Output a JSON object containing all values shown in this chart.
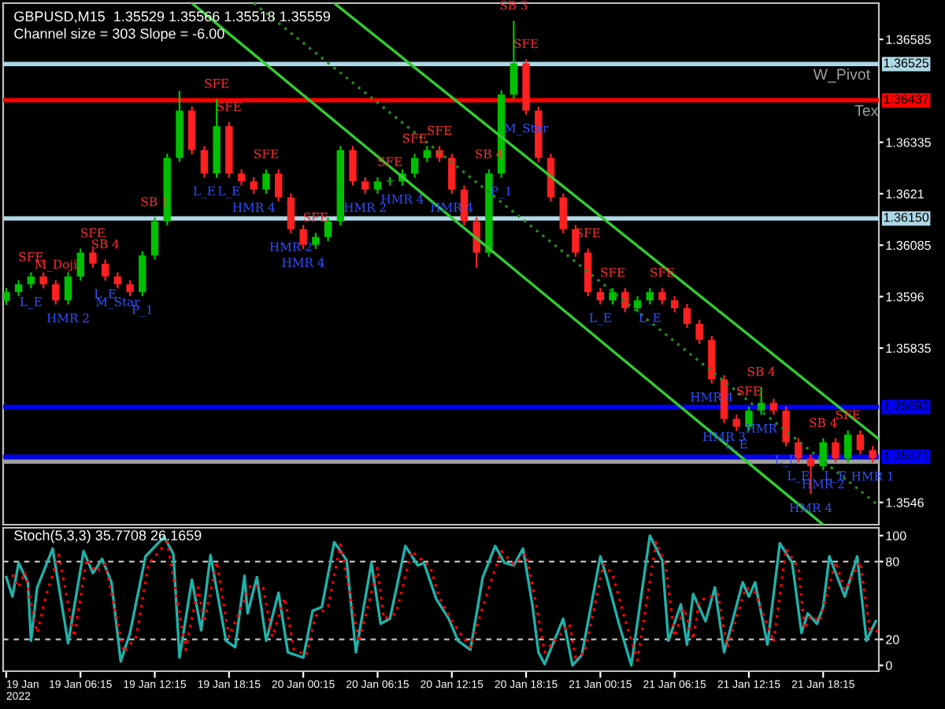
{
  "chart_data": [
    {
      "type": "candlestick",
      "title": "GBPUSD,M15  1.35529 1.35566 1.35518 1.35559",
      "subtitle": "Channel size = 303 Slope = -6.00",
      "tick_labels": "y",
      "x": [
        "2022-01-19T00:15",
        "2022-01-19T01:15",
        "2022-01-19T02:15",
        "2022-01-19T03:15",
        "2022-01-19T04:15",
        "2022-01-19T05:15",
        "2022-01-19T06:15",
        "2022-01-19T07:15",
        "2022-01-19T08:15",
        "2022-01-19T09:15",
        "2022-01-19T10:15",
        "2022-01-19T11:15",
        "2022-01-19T12:15",
        "2022-01-19T13:15",
        "2022-01-19T14:15",
        "2022-01-19T15:15",
        "2022-01-19T16:15",
        "2022-01-19T17:15",
        "2022-01-19T18:15",
        "2022-01-19T19:15",
        "2022-01-19T20:15",
        "2022-01-19T21:15",
        "2022-01-19T22:15",
        "2022-01-19T23:15",
        "2022-01-20T00:15",
        "2022-01-20T01:15",
        "2022-01-20T02:15",
        "2022-01-20T03:15",
        "2022-01-20T04:15",
        "2022-01-20T05:15",
        "2022-01-20T06:15",
        "2022-01-20T07:15",
        "2022-01-20T08:15",
        "2022-01-20T09:15",
        "2022-01-20T10:15",
        "2022-01-20T11:15",
        "2022-01-20T12:15",
        "2022-01-20T13:15",
        "2022-01-20T14:15",
        "2022-01-20T15:15",
        "2022-01-20T16:15",
        "2022-01-20T17:15",
        "2022-01-20T18:15",
        "2022-01-20T19:15",
        "2022-01-20T20:15",
        "2022-01-20T21:15",
        "2022-01-20T22:15",
        "2022-01-20T23:15",
        "2022-01-21T00:15",
        "2022-01-21T01:15",
        "2022-01-21T02:15",
        "2022-01-21T03:15",
        "2022-01-21T04:15",
        "2022-01-21T05:15",
        "2022-01-21T06:15",
        "2022-01-21T07:15",
        "2022-01-21T08:15",
        "2022-01-21T09:15",
        "2022-01-21T10:15",
        "2022-01-21T11:15",
        "2022-01-21T12:15",
        "2022-01-21T13:15",
        "2022-01-21T14:15",
        "2022-01-21T15:15",
        "2022-01-21T16:15",
        "2022-01-21T17:15",
        "2022-01-21T18:15",
        "2022-01-21T19:15",
        "2022-01-21T20:15",
        "2022-01-21T21:15",
        "2022-01-21T22:15"
      ],
      "ohlc": [
        [
          1.3595,
          1.35981,
          1.3594,
          1.35971
        ],
        [
          1.35971,
          1.36,
          1.35961,
          1.3599
        ],
        [
          1.3599,
          1.36019,
          1.3598,
          1.36009
        ],
        [
          1.36009,
          1.36019,
          1.3598,
          1.3599
        ],
        [
          1.3599,
          1.36,
          1.35941,
          1.35951
        ],
        [
          1.35951,
          1.36019,
          1.35941,
          1.36009
        ],
        [
          1.36009,
          1.36077,
          1.35999,
          1.36067
        ],
        [
          1.36067,
          1.36077,
          1.3603,
          1.3604
        ],
        [
          1.3604,
          1.3605,
          1.35999,
          1.36009
        ],
        [
          1.36009,
          1.36019,
          1.3598,
          1.3599
        ],
        [
          1.3599,
          1.36,
          1.35961,
          1.35971
        ],
        [
          1.35971,
          1.3607,
          1.35961,
          1.3606
        ],
        [
          1.3606,
          1.36153,
          1.3605,
          1.36143
        ],
        [
          1.36143,
          1.36307,
          1.36133,
          1.36297
        ],
        [
          1.36297,
          1.3646,
          1.36287,
          1.36412
        ],
        [
          1.36412,
          1.36422,
          1.36306,
          1.36316
        ],
        [
          1.36316,
          1.36326,
          1.36249,
          1.36259
        ],
        [
          1.36259,
          1.3644,
          1.36249,
          1.36374
        ],
        [
          1.36374,
          1.36384,
          1.36249,
          1.36259
        ],
        [
          1.36259,
          1.36269,
          1.3623,
          1.3624
        ],
        [
          1.3624,
          1.3625,
          1.3621,
          1.3622
        ],
        [
          1.3622,
          1.36269,
          1.3621,
          1.36259
        ],
        [
          1.36259,
          1.36269,
          1.36191,
          1.36201
        ],
        [
          1.36201,
          1.36211,
          1.36114,
          1.36124
        ],
        [
          1.36124,
          1.36134,
          1.36076,
          1.36086
        ],
        [
          1.36086,
          1.36115,
          1.36076,
          1.36105
        ],
        [
          1.36105,
          1.36153,
          1.36095,
          1.36143
        ],
        [
          1.36143,
          1.36326,
          1.36133,
          1.36316
        ],
        [
          1.36316,
          1.36326,
          1.3623,
          1.3624
        ],
        [
          1.3624,
          1.3625,
          1.3621,
          1.3622
        ],
        [
          1.3622,
          1.3625,
          1.3621,
          1.3624
        ],
        [
          1.3624,
          1.3625,
          1.3623,
          1.3624
        ],
        [
          1.3624,
          1.36269,
          1.3623,
          1.36259
        ],
        [
          1.36259,
          1.36307,
          1.36249,
          1.36297
        ],
        [
          1.36297,
          1.36326,
          1.36287,
          1.36316
        ],
        [
          1.36316,
          1.36326,
          1.36287,
          1.36297
        ],
        [
          1.36297,
          1.36307,
          1.3621,
          1.3622
        ],
        [
          1.3622,
          1.3623,
          1.36133,
          1.36143
        ],
        [
          1.36143,
          1.36153,
          1.3603,
          1.36067
        ],
        [
          1.36067,
          1.36269,
          1.36057,
          1.36259
        ],
        [
          1.36259,
          1.36461,
          1.36249,
          1.36451
        ],
        [
          1.36451,
          1.3663,
          1.36441,
          1.36527
        ],
        [
          1.36527,
          1.36537,
          1.36402,
          1.36412
        ],
        [
          1.36412,
          1.36422,
          1.36287,
          1.36297
        ],
        [
          1.36297,
          1.36307,
          1.36191,
          1.36201
        ],
        [
          1.36201,
          1.36211,
          1.36114,
          1.36124
        ],
        [
          1.36124,
          1.36134,
          1.36057,
          1.36067
        ],
        [
          1.36067,
          1.36077,
          1.35961,
          1.35971
        ],
        [
          1.35971,
          1.35981,
          1.35941,
          1.35951
        ],
        [
          1.35951,
          1.35981,
          1.35941,
          1.35971
        ],
        [
          1.35971,
          1.35981,
          1.35922,
          1.35932
        ],
        [
          1.35932,
          1.35961,
          1.35922,
          1.35951
        ],
        [
          1.35951,
          1.35981,
          1.35941,
          1.35971
        ],
        [
          1.35971,
          1.35981,
          1.35941,
          1.35951
        ],
        [
          1.35951,
          1.35961,
          1.35922,
          1.35932
        ],
        [
          1.35932,
          1.35942,
          1.35884,
          1.35894
        ],
        [
          1.35894,
          1.35904,
          1.35845,
          1.35855
        ],
        [
          1.35855,
          1.35865,
          1.35749,
          1.35759
        ],
        [
          1.35759,
          1.35769,
          1.35653,
          1.35663
        ],
        [
          1.35663,
          1.35673,
          1.35634,
          1.35644
        ],
        [
          1.35644,
          1.35693,
          1.35634,
          1.35683
        ],
        [
          1.35683,
          1.3574,
          1.35673,
          1.35702
        ],
        [
          1.35702,
          1.35712,
          1.35673,
          1.35683
        ],
        [
          1.35683,
          1.35693,
          1.35596,
          1.35606
        ],
        [
          1.35606,
          1.35616,
          1.35557,
          1.35567
        ],
        [
          1.35567,
          1.35577,
          1.3548,
          1.35548
        ],
        [
          1.35548,
          1.35616,
          1.35538,
          1.35606
        ],
        [
          1.35606,
          1.35616,
          1.35557,
          1.35567
        ],
        [
          1.35567,
          1.35635,
          1.35557,
          1.35625
        ],
        [
          1.35625,
          1.35635,
          1.35577,
          1.35587
        ],
        [
          1.35587,
          1.35597,
          1.35557,
          1.35567
        ]
      ],
      "series": [
        {
          "type": "line",
          "color": "#32cd32",
          "line_style": "solid",
          "x": [
            "2022-01-20T02:45",
            "2022-01-21T22:45"
          ],
          "values": [
            1.36673,
            1.35614
          ]
        },
        {
          "type": "line",
          "color": "#228b22",
          "line_style": "dotted",
          "x": [
            "2022-01-19T20:15",
            "2022-01-21T22:45"
          ],
          "values": [
            1.36673,
            1.35452
          ]
        },
        {
          "type": "line",
          "color": "#32cd32",
          "line_style": "solid",
          "x": [
            "2022-01-19T15:15",
            "2022-01-21T18:15"
          ],
          "values": [
            1.36673,
            1.35406
          ]
        }
      ],
      "ref_lines": [
        {
          "axis": "y",
          "value": 1.36525,
          "label": "1.36525",
          "color": "#add8e6"
        },
        {
          "axis": "y",
          "value": 1.36437,
          "label": "1.36437",
          "color": "#ff0000"
        },
        {
          "axis": "y",
          "value": 1.3615,
          "label": "1.36150",
          "color": "#add8e6"
        },
        {
          "axis": "y",
          "value": 1.35692,
          "label": "1.35692",
          "color": "#0000ff"
        },
        {
          "axis": "y",
          "value": 1.35571,
          "label": "1.35571",
          "color": "#0000ff"
        },
        {
          "axis": "y",
          "value": 1.35559,
          "color": "#a0a0a0"
        }
      ],
      "xlim": [
        "2022-01-19T00:00",
        "2022-01-21T22:45"
      ],
      "ylim": [
        1.35406,
        1.36673
      ],
      "yticks": [
        1.36585,
        1.36335,
        1.3621,
        1.36085,
        1.3596,
        1.35835,
        1.3546
      ],
      "annotations": [
        {
          "text": "W_Pivot",
          "x": "2022-01-21T19:45",
          "y": 1.36525
        },
        {
          "text": "Tex",
          "x": "2022-01-21T21:45",
          "y": 1.36437
        },
        {
          "text": "SFE",
          "x": "2022-01-19T17:15",
          "y": 1.3644
        },
        {
          "text": "SFE",
          "x": "2022-01-19T18:15",
          "y": 1.36384
        },
        {
          "text": "SFE",
          "x": "2022-01-19T21:15",
          "y": 1.36269
        },
        {
          "text": "SB 1",
          "x": "2022-01-19T12:15",
          "y": 1.36153
        },
        {
          "text": "SB 4",
          "x": "2022-01-19T08:15",
          "y": 1.3605
        },
        {
          "text": "SFE",
          "x": "2022-01-19T07:15",
          "y": 1.36077
        },
        {
          "text": "SFE",
          "x": "2022-01-19T02:15",
          "y": 1.36019
        },
        {
          "text": "SFE",
          "x": "2022-01-20T01:15",
          "y": 1.36115
        },
        {
          "text": "SFE",
          "x": "2022-01-20T11:15",
          "y": 1.36326
        },
        {
          "text": "SFE",
          "x": "2022-01-20T09:15",
          "y": 1.36307
        },
        {
          "text": "SFE",
          "x": "2022-01-20T07:15",
          "y": 1.3625
        },
        {
          "text": "SB 3",
          "x": "2022-01-20T17:15",
          "y": 1.3663
        },
        {
          "text": "SFE",
          "x": "2022-01-20T18:15",
          "y": 1.36537
        },
        {
          "text": "SB 4",
          "x": "2022-01-20T15:15",
          "y": 1.36269
        },
        {
          "text": "SFE",
          "x": "2022-01-21T01:15",
          "y": 1.35981
        },
        {
          "text": "SFE",
          "x": "2022-01-20T23:15",
          "y": 1.36077
        },
        {
          "text": "SFE",
          "x": "2022-01-21T05:15",
          "y": 1.35981
        },
        {
          "text": "SB 4",
          "x": "2022-01-21T13:15",
          "y": 1.3574
        },
        {
          "text": "SFE",
          "x": "2022-01-21T12:15",
          "y": 1.35693
        },
        {
          "text": "SB 4",
          "x": "2022-01-21T18:15",
          "y": 1.35616
        },
        {
          "text": "SFE",
          "x": "2022-01-21T20:15",
          "y": 1.35635
        },
        {
          "text": "M_Doji",
          "x": "2022-01-19T04:15",
          "y": 1.36
        },
        {
          "text": "L_E",
          "x": "2022-01-19T16:15",
          "y": 1.36249
        },
        {
          "text": "HMR 4",
          "x": "2022-01-19T20:15",
          "y": 1.3621
        },
        {
          "text": "HMR 2",
          "x": "2022-01-20T05:15",
          "y": 1.3621
        },
        {
          "text": "HMR 4",
          "x": "2022-01-20T08:15",
          "y": 1.3623
        },
        {
          "text": "HMR 4",
          "x": "2022-01-20T12:15",
          "y": 1.3621
        },
        {
          "text": "M_Star",
          "x": "2022-01-20T18:15",
          "y": 1.36402
        },
        {
          "text": "P_1",
          "x": "2022-01-20T16:15",
          "y": 1.36249
        },
        {
          "text": "HMR 2",
          "x": "2022-01-19T23:15",
          "y": 1.36114
        },
        {
          "text": "HMR 4",
          "x": "2022-01-20T00:15",
          "y": 1.36076
        },
        {
          "text": "L_E",
          "x": "2022-01-19T08:15",
          "y": 1.35999
        },
        {
          "text": "L_E",
          "x": "2022-01-19T18:15",
          "y": 1.36249
        },
        {
          "text": "HMR 2",
          "x": "2022-01-19T05:15",
          "y": 1.35941
        },
        {
          "text": "M_Star",
          "x": "2022-01-19T09:15",
          "y": 1.3598
        },
        {
          "text": "L_E",
          "x": "2022-01-19T02:15",
          "y": 1.3598
        },
        {
          "text": "P_1",
          "x": "2022-01-19T11:15",
          "y": 1.35961
        },
        {
          "text": "L_E",
          "x": "2022-01-21T00:15",
          "y": 1.35941
        },
        {
          "text": "L_E",
          "x": "2022-01-21T04:15",
          "y": 1.35941
        },
        {
          "text": "HMR 4",
          "x": "2022-01-21T09:15",
          "y": 1.35749
        },
        {
          "text": "HMR 3",
          "x": "2022-01-21T10:15",
          "y": 1.35653
        },
        {
          "text": "L_E",
          "x": "2022-01-21T11:15",
          "y": 1.35634
        },
        {
          "text": "L_E",
          "x": "2022-01-21T15:15",
          "y": 1.35596
        },
        {
          "text": "HMR",
          "x": "2022-01-21T13:15",
          "y": 1.35673
        },
        {
          "text": "L_E",
          "x": "2022-01-21T16:15",
          "y": 1.35557
        },
        {
          "text": "HMR 4",
          "x": "2022-01-21T17:15",
          "y": 1.3548
        },
        {
          "text": "L_E",
          "x": "2022-01-21T19:15",
          "y": 1.35557
        },
        {
          "text": "HMR 2",
          "x": "2022-01-21T18:15",
          "y": 1.35538
        },
        {
          "text": "HMR 1",
          "x": "2022-01-21T22:15",
          "y": 1.35557
        }
      ]
    },
    {
      "type": "line",
      "title": "Stoch(5,3,3) 35.7708 26.1659",
      "xlim": [
        "2022-01-19T00:00",
        "2022-01-21T22:45"
      ],
      "ylim": [
        -4.5,
        106
      ],
      "yticks": [
        0,
        20,
        80,
        100
      ],
      "xticks": [
        {
          "value": "2022-01-19T00:15",
          "label": "19 Jan 2022"
        },
        {
          "value": "2022-01-19T06:15",
          "label": "19 Jan 06:15"
        },
        {
          "value": "2022-01-19T12:15",
          "label": "19 Jan 12:15"
        },
        {
          "value": "2022-01-19T18:15",
          "label": "19 Jan 18:15"
        },
        {
          "value": "2022-01-20T00:15",
          "label": "20 Jan 00:15"
        },
        {
          "value": "2022-01-20T06:15",
          "label": "20 Jan 06:15"
        },
        {
          "value": "2022-01-20T12:15",
          "label": "20 Jan 12:15"
        },
        {
          "value": "2022-01-20T18:15",
          "label": "20 Jan 18:15"
        },
        {
          "value": "2022-01-21T00:15",
          "label": "21 Jan 00:15"
        },
        {
          "value": "2022-01-21T06:15",
          "label": "21 Jan 06:15"
        },
        {
          "value": "2022-01-21T12:15",
          "label": "21 Jan 12:15"
        },
        {
          "value": "2022-01-21T18:15",
          "label": "21 Jan 18:15"
        }
      ],
      "ref_lines": [
        {
          "axis": "y",
          "value": 20,
          "color": "#c0c0c0",
          "line_style": "dashed"
        },
        {
          "axis": "y",
          "value": 80,
          "color": "#c0c0c0",
          "line_style": "dashed"
        }
      ],
      "series": [
        {
          "color": "#20b2aa",
          "line_style": "solid",
          "x": [
            "2022-01-19T00:15",
            "2022-01-19T00:45",
            "2022-01-19T01:15",
            "2022-01-19T02:00",
            "2022-01-19T02:15",
            "2022-01-19T02:45",
            "2022-01-19T04:00",
            "2022-01-19T05:15",
            "2022-01-19T06:30",
            "2022-01-19T07:15",
            "2022-01-19T08:00",
            "2022-01-19T08:45",
            "2022-01-19T09:30",
            "2022-01-19T10:15",
            "2022-01-19T11:30",
            "2022-01-19T13:00",
            "2022-01-19T13:45",
            "2022-01-19T14:15",
            "2022-01-19T15:15",
            "2022-01-19T16:00",
            "2022-01-19T16:45",
            "2022-01-19T18:00",
            "2022-01-19T18:45",
            "2022-01-19T19:30",
            "2022-01-19T19:45",
            "2022-01-19T20:30",
            "2022-01-19T21:15",
            "2022-01-19T22:15",
            "2022-01-19T23:00",
            "2022-01-20T00:15",
            "2022-01-20T01:00",
            "2022-01-20T01:45",
            "2022-01-20T02:45",
            "2022-01-20T03:45",
            "2022-01-20T04:30",
            "2022-01-20T05:45",
            "2022-01-20T06:30",
            "2022-01-20T07:15",
            "2022-01-20T08:30",
            "2022-01-20T09:30",
            "2022-01-20T10:00",
            "2022-01-20T11:00",
            "2022-01-20T12:00",
            "2022-01-20T12:45",
            "2022-01-20T13:45",
            "2022-01-20T14:45",
            "2022-01-20T15:45",
            "2022-01-20T16:30",
            "2022-01-20T17:15",
            "2022-01-20T18:00",
            "2022-01-20T18:45",
            "2022-01-20T19:15",
            "2022-01-20T19:45",
            "2022-01-20T21:15",
            "2022-01-20T22:00",
            "2022-01-20T22:45",
            "2022-01-21T00:15",
            "2022-01-21T00:45",
            "2022-01-21T01:45",
            "2022-01-21T02:45",
            "2022-01-21T04:15",
            "2022-01-21T05:15",
            "2022-01-21T05:45",
            "2022-01-21T06:45",
            "2022-01-21T07:15",
            "2022-01-21T07:45",
            "2022-01-21T08:45",
            "2022-01-21T09:30",
            "2022-01-21T10:15",
            "2022-01-21T11:45",
            "2022-01-21T12:15",
            "2022-01-21T12:45",
            "2022-01-21T13:45",
            "2022-01-21T14:45",
            "2022-01-21T15:45",
            "2022-01-21T16:30",
            "2022-01-21T17:00",
            "2022-01-21T17:45",
            "2022-01-21T18:15",
            "2022-01-21T18:45",
            "2022-01-21T20:00",
            "2022-01-21T21:00",
            "2022-01-21T21:45",
            "2022-01-21T22:30"
          ],
          "values": [
            68,
            53,
            79,
            64,
            19,
            60,
            90,
            17,
            88,
            71,
            82,
            64,
            3,
            25,
            84,
            99,
            86,
            6,
            66,
            27,
            85,
            19,
            14,
            69,
            40,
            68,
            19,
            56,
            10,
            6,
            42,
            45,
            95,
            81,
            10,
            79,
            32,
            36,
            92,
            77,
            79,
            51,
            36,
            19,
            12,
            68,
            92,
            79,
            77,
            90,
            47,
            10,
            1,
            36,
            0,
            8,
            84,
            68,
            32,
            0,
            100,
            81,
            19,
            47,
            16,
            55,
            34,
            60,
            10,
            64,
            53,
            64,
            16,
            94,
            79,
            25,
            40,
            32,
            45,
            84,
            53,
            84,
            19,
            34
          ]
        },
        {
          "color": "#ff0000",
          "line_style": "dotted",
          "x": [
            "2022-01-19T00:45",
            "2022-01-19T01:15",
            "2022-01-19T01:45",
            "2022-01-19T02:45",
            "2022-01-19T03:30",
            "2022-01-19T04:30",
            "2022-01-19T05:45",
            "2022-01-19T06:45",
            "2022-01-19T07:30",
            "2022-01-19T08:15",
            "2022-01-19T09:45",
            "2022-01-19T10:45",
            "2022-01-19T11:45",
            "2022-01-19T13:15",
            "2022-01-19T14:45",
            "2022-01-19T15:45",
            "2022-01-19T16:15",
            "2022-01-19T17:15",
            "2022-01-19T18:15",
            "2022-01-19T20:00",
            "2022-01-19T21:00",
            "2022-01-19T21:45",
            "2022-01-19T22:45",
            "2022-01-19T23:30",
            "2022-01-20T00:30",
            "2022-01-20T01:15",
            "2022-01-20T02:15",
            "2022-01-20T03:15",
            "2022-01-20T04:45",
            "2022-01-20T06:15",
            "2022-01-20T06:45",
            "2022-01-20T07:45",
            "2022-01-20T09:00",
            "2022-01-20T10:30",
            "2022-01-20T11:15",
            "2022-01-20T12:15",
            "2022-01-20T13:45",
            "2022-01-20T15:15",
            "2022-01-20T16:15",
            "2022-01-20T17:15",
            "2022-01-20T18:15",
            "2022-01-20T19:00",
            "2022-01-20T19:45",
            "2022-01-20T21:45",
            "2022-01-20T22:15",
            "2022-01-20T23:00",
            "2022-01-21T00:30",
            "2022-01-21T01:15",
            "2022-01-21T02:15",
            "2022-01-21T03:15",
            "2022-01-21T04:45",
            "2022-01-21T05:30",
            "2022-01-21T06:15",
            "2022-01-21T07:00",
            "2022-01-21T07:45",
            "2022-01-21T08:15",
            "2022-01-21T09:45",
            "2022-01-21T10:30",
            "2022-01-21T12:00",
            "2022-01-21T12:45",
            "2022-01-21T14:15",
            "2022-01-21T15:15",
            "2022-01-21T16:15",
            "2022-01-21T16:45",
            "2022-01-21T17:15",
            "2022-01-21T18:00",
            "2022-01-21T19:15",
            "2022-01-21T20:00",
            "2022-01-21T21:15",
            "2022-01-21T22:00",
            "2022-01-21T22:45"
          ],
          "values": [
            70,
            60,
            72,
            25,
            55,
            85,
            22,
            82,
            72,
            78,
            10,
            22,
            78,
            95,
            12,
            60,
            33,
            80,
            22,
            62,
            60,
            22,
            52,
            12,
            8,
            38,
            45,
            93,
            18,
            75,
            36,
            40,
            88,
            76,
            52,
            34,
            14,
            60,
            88,
            78,
            86,
            50,
            10,
            32,
            6,
            10,
            78,
            70,
            35,
            4,
            95,
            78,
            22,
            44,
            20,
            50,
            55,
            14,
            60,
            56,
            18,
            90,
            75,
            28,
            38,
            34,
            80,
            58,
            80,
            28,
            26
          ]
        }
      ]
    }
  ]
}
